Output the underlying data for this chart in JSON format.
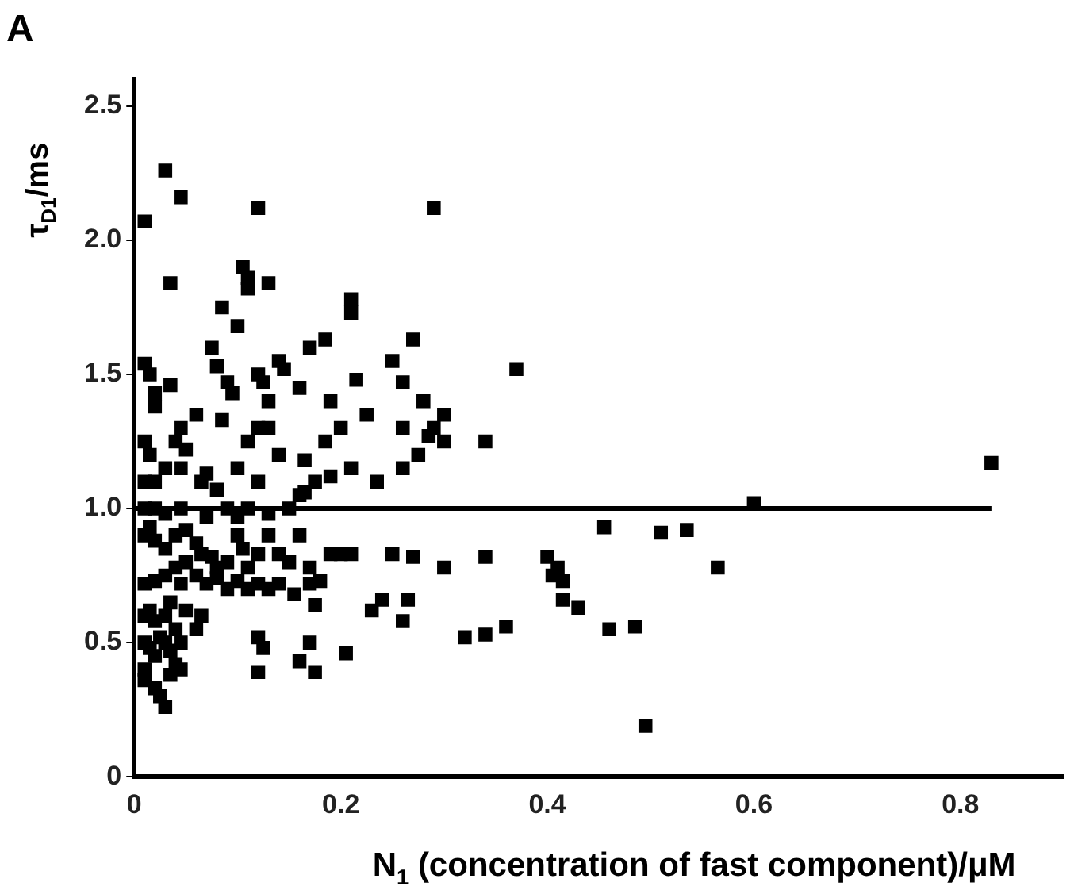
{
  "chart_data": {
    "type": "scatter",
    "title": "A",
    "xlabel": "N$_{1}$ (concentration of fast component)/μM",
    "ylabel": "τ$_{D1}$/ms",
    "xlim": [
      0,
      0.9
    ],
    "xticks": [
      0,
      0.2,
      0.4,
      0.6,
      0.8
    ],
    "ylim": [
      0,
      2.6
    ],
    "yticks": [
      0,
      0.5,
      {
        "value": 1,
        "label": "1.0"
      },
      1.5,
      {
        "value": 2,
        "label": "2.0"
      },
      2.5
    ],
    "grid": false,
    "legend": false,
    "marker": "square",
    "series": [
      {
        "type": "scatter",
        "color": "#000000",
        "x": [
          0.03,
          0.045,
          0.01,
          0.035,
          0.12,
          0.29,
          0.105,
          0.11,
          0.11,
          0.13,
          0.085,
          0.21,
          0.21,
          0.185,
          0.17,
          0.1,
          0.27,
          0.37,
          0.01,
          0.015,
          0.035,
          0.02,
          0.02,
          0.075,
          0.08,
          0.09,
          0.095,
          0.12,
          0.125,
          0.13,
          0.14,
          0.145,
          0.16,
          0.215,
          0.19,
          0.25,
          0.26,
          0.28,
          0.3,
          0.29,
          0.3,
          0.285,
          0.26,
          0.275,
          0.26,
          0.34,
          0.2,
          0.225,
          0.235,
          0.21,
          0.19,
          0.175,
          0.165,
          0.165,
          0.185,
          0.13,
          0.14,
          0.11,
          0.12,
          0.1,
          0.12,
          0.085,
          0.06,
          0.045,
          0.05,
          0.04,
          0.01,
          0.015,
          0.02,
          0.01,
          0.03,
          0.045,
          0.07,
          0.08,
          0.065,
          0.01,
          0.02,
          0.03,
          0.045,
          0.07,
          0.09,
          0.1,
          0.11,
          0.13,
          0.15,
          0.16,
          0.6,
          0.83,
          0.01,
          0.015,
          0.02,
          0.03,
          0.04,
          0.05,
          0.06,
          0.065,
          0.075,
          0.08,
          0.09,
          0.1,
          0.105,
          0.11,
          0.12,
          0.13,
          0.14,
          0.15,
          0.16,
          0.17,
          0.18,
          0.19,
          0.2,
          0.21,
          0.25,
          0.27,
          0.3,
          0.34,
          0.4,
          0.41,
          0.405,
          0.415,
          0.455,
          0.51,
          0.535,
          0.565,
          0.01,
          0.02,
          0.03,
          0.04,
          0.045,
          0.05,
          0.06,
          0.07,
          0.08,
          0.09,
          0.1,
          0.11,
          0.12,
          0.13,
          0.14,
          0.155,
          0.17,
          0.175,
          0.01,
          0.015,
          0.02,
          0.03,
          0.035,
          0.04,
          0.05,
          0.06,
          0.065,
          0.12,
          0.125,
          0.17,
          0.23,
          0.24,
          0.265,
          0.26,
          0.32,
          0.34,
          0.36,
          0.415,
          0.43,
          0.46,
          0.485,
          0.495,
          0.01,
          0.015,
          0.02,
          0.025,
          0.03,
          0.035,
          0.04,
          0.045,
          0.01,
          0.01,
          0.02,
          0.025,
          0.03,
          0.035,
          0.045,
          0.12,
          0.16,
          0.175,
          0.205
        ],
        "values": [
          2.26,
          2.16,
          2.07,
          1.84,
          2.12,
          2.12,
          1.9,
          1.86,
          1.82,
          1.84,
          1.75,
          1.78,
          1.73,
          1.63,
          1.6,
          1.68,
          1.63,
          1.52,
          1.54,
          1.5,
          1.46,
          1.43,
          1.38,
          1.6,
          1.53,
          1.47,
          1.43,
          1.5,
          1.47,
          1.4,
          1.55,
          1.52,
          1.45,
          1.48,
          1.4,
          1.55,
          1.47,
          1.4,
          1.35,
          1.3,
          1.25,
          1.27,
          1.3,
          1.2,
          1.15,
          1.25,
          1.3,
          1.35,
          1.1,
          1.15,
          1.12,
          1.1,
          1.18,
          1.06,
          1.25,
          1.3,
          1.2,
          1.25,
          1.3,
          1.15,
          1.1,
          1.33,
          1.35,
          1.3,
          1.22,
          1.25,
          1.25,
          1.2,
          1.1,
          1.1,
          1.15,
          1.15,
          1.13,
          1.07,
          1.1,
          1.0,
          1.0,
          0.98,
          1.0,
          0.97,
          1.0,
          0.97,
          1.0,
          0.98,
          1.0,
          1.05,
          1.02,
          1.17,
          0.9,
          0.93,
          0.88,
          0.85,
          0.9,
          0.92,
          0.87,
          0.83,
          0.82,
          0.78,
          0.8,
          0.9,
          0.85,
          0.78,
          0.83,
          0.9,
          0.83,
          0.8,
          0.9,
          0.78,
          0.73,
          0.83,
          0.83,
          0.83,
          0.83,
          0.82,
          0.78,
          0.82,
          0.82,
          0.78,
          0.75,
          0.73,
          0.93,
          0.91,
          0.92,
          0.78,
          0.72,
          0.73,
          0.75,
          0.78,
          0.72,
          0.8,
          0.75,
          0.72,
          0.74,
          0.7,
          0.73,
          0.7,
          0.72,
          0.7,
          0.72,
          0.68,
          0.72,
          0.64,
          0.6,
          0.62,
          0.58,
          0.6,
          0.65,
          0.55,
          0.62,
          0.55,
          0.6,
          0.52,
          0.48,
          0.5,
          0.62,
          0.66,
          0.66,
          0.58,
          0.52,
          0.53,
          0.56,
          0.66,
          0.63,
          0.55,
          0.56,
          0.19,
          0.5,
          0.48,
          0.45,
          0.52,
          0.5,
          0.47,
          0.42,
          0.5,
          0.4,
          0.36,
          0.33,
          0.3,
          0.26,
          0.38,
          0.4,
          0.39,
          0.43,
          0.39,
          0.46
        ]
      },
      {
        "type": "line",
        "color": "#000000",
        "marker": "none",
        "x": [
          0,
          0.83
        ],
        "values": [
          1,
          1
        ]
      }
    ]
  }
}
